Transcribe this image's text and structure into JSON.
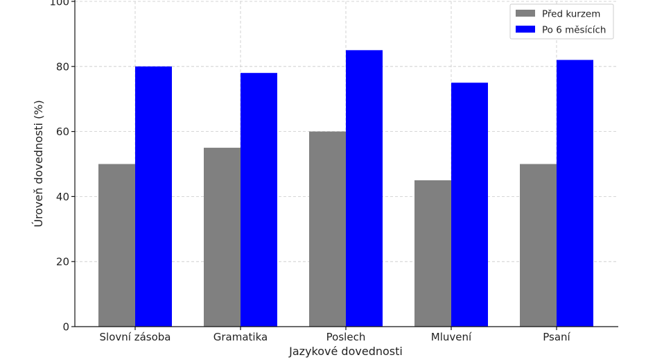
{
  "chart_data": {
    "type": "bar",
    "title": "",
    "xlabel": "Jazykové dovednosti",
    "ylabel": "Úroveň dovednosti (%)",
    "ylim": [
      0,
      100
    ],
    "yticks": [
      0,
      20,
      40,
      60,
      80,
      100
    ],
    "grid": true,
    "legend_position": "top-right",
    "categories": [
      "Slovní zásoba",
      "Gramatika",
      "Poslech",
      "Mluvení",
      "Psaní"
    ],
    "series": [
      {
        "name": "Před kurzem",
        "color": "#808080",
        "values": [
          50,
          55,
          60,
          45,
          50
        ]
      },
      {
        "name": "Po 6 měsících",
        "color": "#0000ff",
        "values": [
          80,
          78,
          85,
          75,
          82
        ]
      }
    ]
  }
}
